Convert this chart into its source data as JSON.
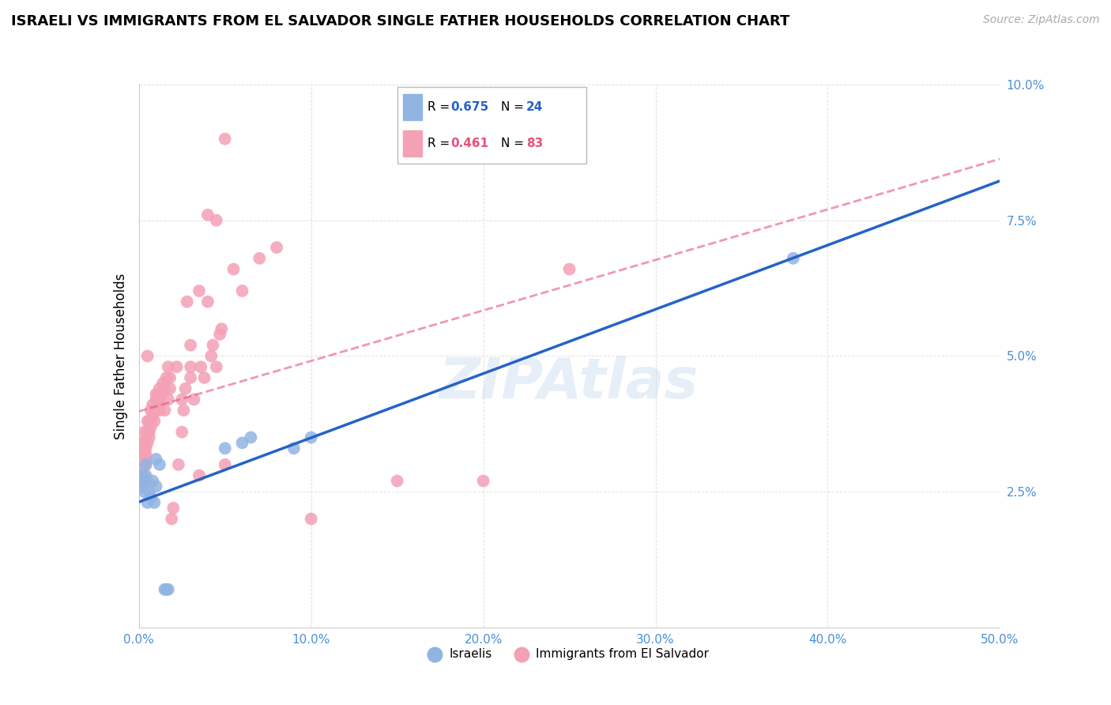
{
  "title": "ISRAELI VS IMMIGRANTS FROM EL SALVADOR SINGLE FATHER HOUSEHOLDS CORRELATION CHART",
  "source": "Source: ZipAtlas.com",
  "ylabel": "Single Father Households",
  "xlim": [
    0,
    0.5
  ],
  "ylim": [
    0,
    0.1
  ],
  "xticks": [
    0.0,
    0.1,
    0.2,
    0.3,
    0.4,
    0.5
  ],
  "yticks": [
    0.0,
    0.025,
    0.05,
    0.075,
    0.1
  ],
  "xticklabels": [
    "0.0%",
    "10.0%",
    "20.0%",
    "30.0%",
    "40.0%",
    "50.0%"
  ],
  "yticklabels": [
    "",
    "2.5%",
    "5.0%",
    "7.5%",
    "10.0%"
  ],
  "watermark": "ZIPAtlas",
  "blue_R": 0.675,
  "blue_N": 24,
  "pink_R": 0.461,
  "pink_N": 83,
  "blue_color": "#92b4e3",
  "pink_color": "#f4a0b5",
  "blue_line_color": "#2563c7",
  "pink_line_color": "#e8527a",
  "blue_scatter": [
    [
      0.001,
      0.028
    ],
    [
      0.002,
      0.026
    ],
    [
      0.003,
      0.025
    ],
    [
      0.003,
      0.027
    ],
    [
      0.004,
      0.03
    ],
    [
      0.004,
      0.028
    ],
    [
      0.005,
      0.027
    ],
    [
      0.005,
      0.023
    ],
    [
      0.006,
      0.025
    ],
    [
      0.007,
      0.024
    ],
    [
      0.008,
      0.027
    ],
    [
      0.009,
      0.023
    ],
    [
      0.01,
      0.026
    ],
    [
      0.01,
      0.031
    ],
    [
      0.012,
      0.03
    ],
    [
      0.015,
      0.007
    ],
    [
      0.016,
      0.007
    ],
    [
      0.017,
      0.007
    ],
    [
      0.05,
      0.033
    ],
    [
      0.06,
      0.034
    ],
    [
      0.065,
      0.035
    ],
    [
      0.09,
      0.033
    ],
    [
      0.1,
      0.035
    ],
    [
      0.38,
      0.068
    ]
  ],
  "pink_scatter": [
    [
      0.001,
      0.029
    ],
    [
      0.001,
      0.03
    ],
    [
      0.001,
      0.031
    ],
    [
      0.002,
      0.027
    ],
    [
      0.002,
      0.03
    ],
    [
      0.002,
      0.032
    ],
    [
      0.002,
      0.033
    ],
    [
      0.002,
      0.034
    ],
    [
      0.003,
      0.028
    ],
    [
      0.003,
      0.03
    ],
    [
      0.003,
      0.031
    ],
    [
      0.003,
      0.034
    ],
    [
      0.003,
      0.036
    ],
    [
      0.004,
      0.03
    ],
    [
      0.004,
      0.031
    ],
    [
      0.004,
      0.032
    ],
    [
      0.004,
      0.033
    ],
    [
      0.005,
      0.034
    ],
    [
      0.005,
      0.036
    ],
    [
      0.005,
      0.038
    ],
    [
      0.005,
      0.05
    ],
    [
      0.006,
      0.035
    ],
    [
      0.006,
      0.036
    ],
    [
      0.006,
      0.038
    ],
    [
      0.007,
      0.037
    ],
    [
      0.007,
      0.038
    ],
    [
      0.007,
      0.04
    ],
    [
      0.008,
      0.039
    ],
    [
      0.008,
      0.041
    ],
    [
      0.009,
      0.038
    ],
    [
      0.009,
      0.04
    ],
    [
      0.01,
      0.04
    ],
    [
      0.01,
      0.042
    ],
    [
      0.01,
      0.043
    ],
    [
      0.011,
      0.041
    ],
    [
      0.011,
      0.043
    ],
    [
      0.012,
      0.04
    ],
    [
      0.012,
      0.042
    ],
    [
      0.012,
      0.044
    ],
    [
      0.013,
      0.043
    ],
    [
      0.014,
      0.045
    ],
    [
      0.015,
      0.04
    ],
    [
      0.015,
      0.044
    ],
    [
      0.016,
      0.046
    ],
    [
      0.017,
      0.042
    ],
    [
      0.017,
      0.048
    ],
    [
      0.018,
      0.044
    ],
    [
      0.018,
      0.046
    ],
    [
      0.019,
      0.02
    ],
    [
      0.02,
      0.022
    ],
    [
      0.022,
      0.048
    ],
    [
      0.023,
      0.03
    ],
    [
      0.025,
      0.036
    ],
    [
      0.025,
      0.042
    ],
    [
      0.026,
      0.04
    ],
    [
      0.027,
      0.044
    ],
    [
      0.028,
      0.06
    ],
    [
      0.03,
      0.046
    ],
    [
      0.03,
      0.048
    ],
    [
      0.03,
      0.052
    ],
    [
      0.032,
      0.042
    ],
    [
      0.035,
      0.028
    ],
    [
      0.035,
      0.062
    ],
    [
      0.036,
      0.048
    ],
    [
      0.038,
      0.046
    ],
    [
      0.04,
      0.06
    ],
    [
      0.04,
      0.076
    ],
    [
      0.042,
      0.05
    ],
    [
      0.043,
      0.052
    ],
    [
      0.045,
      0.048
    ],
    [
      0.045,
      0.075
    ],
    [
      0.047,
      0.054
    ],
    [
      0.048,
      0.055
    ],
    [
      0.05,
      0.03
    ],
    [
      0.05,
      0.09
    ],
    [
      0.055,
      0.066
    ],
    [
      0.06,
      0.062
    ],
    [
      0.07,
      0.068
    ],
    [
      0.08,
      0.07
    ],
    [
      0.1,
      0.02
    ],
    [
      0.15,
      0.027
    ],
    [
      0.2,
      0.027
    ],
    [
      0.25,
      0.066
    ]
  ]
}
